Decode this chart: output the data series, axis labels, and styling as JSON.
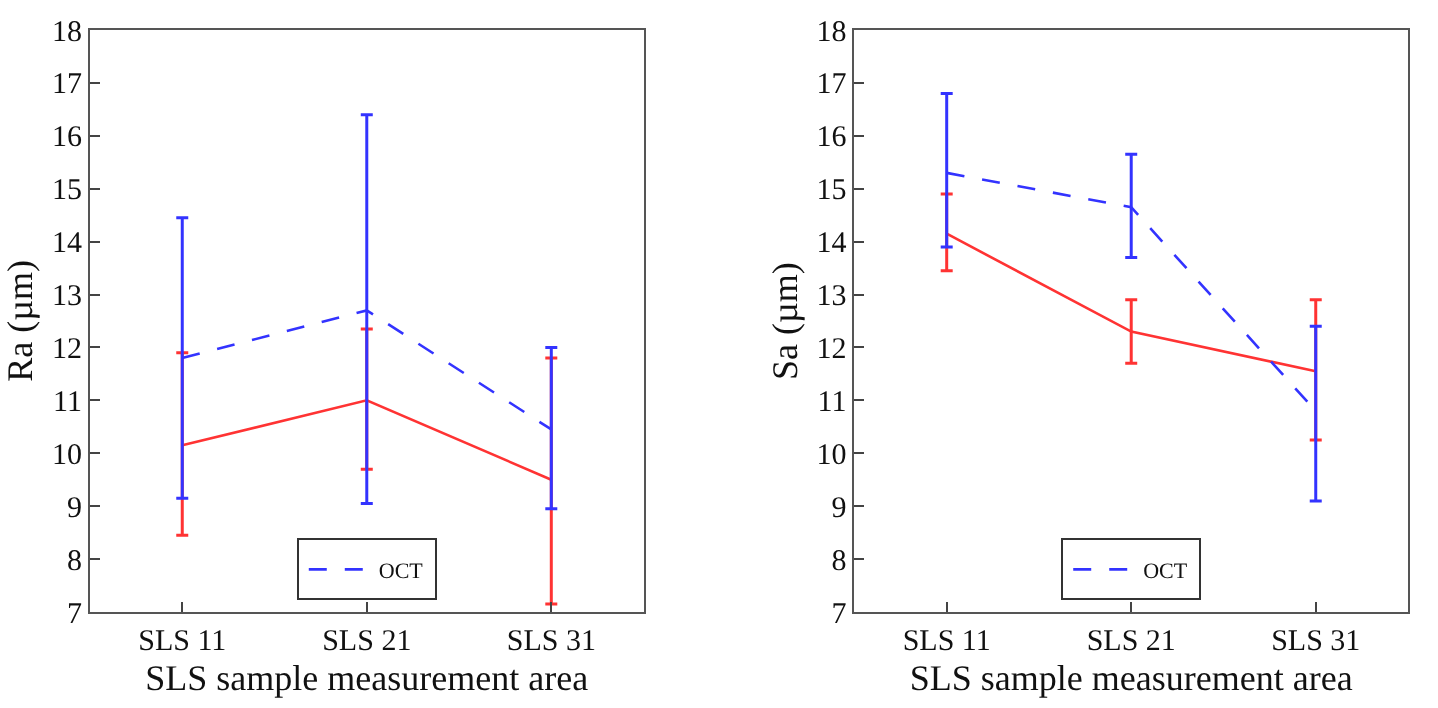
{
  "chart_data": [
    {
      "type": "line",
      "xlabel": "SLS sample measurement area",
      "ylabel": "Ra (µm)",
      "categories": [
        "SLS 11",
        "SLS 21",
        "SLS 31"
      ],
      "ylim": [
        7,
        18
      ],
      "yticks": [
        7,
        8,
        9,
        10,
        11,
        12,
        13,
        14,
        15,
        16,
        17,
        18
      ],
      "legend": "bottom",
      "series": [
        {
          "color": "#ff3333",
          "line_style": "solid",
          "values": [
            10.15,
            11.0,
            9.5
          ],
          "errors": [
            [
              8.45,
              11.9
            ],
            [
              9.7,
              12.35
            ],
            [
              7.15,
              11.8
            ]
          ]
        },
        {
          "name": "OCT",
          "color": "#3333ff",
          "line_style": "dashed",
          "values": [
            11.8,
            12.7,
            10.45
          ],
          "errors": [
            [
              9.15,
              14.45
            ],
            [
              9.05,
              16.4
            ],
            [
              8.95,
              12.0
            ]
          ]
        }
      ]
    },
    {
      "type": "line",
      "xlabel": "SLS sample measurement area",
      "ylabel": "Sa (µm)",
      "categories": [
        "SLS 11",
        "SLS 21",
        "SLS 31"
      ],
      "ylim": [
        7,
        18
      ],
      "yticks": [
        7,
        8,
        9,
        10,
        11,
        12,
        13,
        14,
        15,
        16,
        17,
        18
      ],
      "legend": "bottom",
      "series": [
        {
          "color": "#ff3333",
          "line_style": "solid",
          "values": [
            14.15,
            12.3,
            11.55
          ],
          "errors": [
            [
              13.45,
              14.9
            ],
            [
              11.7,
              12.9
            ],
            [
              10.25,
              12.9
            ]
          ]
        },
        {
          "name": "OCT",
          "color": "#3333ff",
          "line_style": "dashed",
          "values": [
            15.3,
            14.65,
            10.8
          ],
          "errors": [
            [
              13.9,
              16.8
            ],
            [
              13.7,
              15.65
            ],
            [
              9.1,
              12.4
            ]
          ]
        }
      ]
    }
  ]
}
